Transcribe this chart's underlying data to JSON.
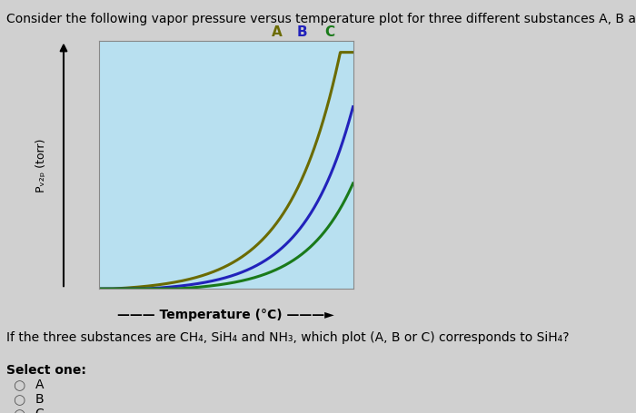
{
  "title": "Consider the following vapor pressure versus temperature plot for three different substances A, B and C.",
  "question": "If the three substances are CH₄, SiH₄ and NH₃, which plot (A, B or C) corresponds to SiH₄?",
  "select_one": "Select one:",
  "options": [
    "A",
    "B",
    "C"
  ],
  "ylabel": "Pᵥ₂ₚ (torr)",
  "xlabel": "Temperature (°C)",
  "plot_bg": "#b8e0f0",
  "curve_A_color": "#6b6b00",
  "curve_B_color": "#2222bb",
  "curve_C_color": "#1a7a1a",
  "label_A_color": "#6b6b00",
  "label_B_color": "#2222bb",
  "label_C_color": "#1a7a1a",
  "fig_bg": "#d0d0d0",
  "title_fontsize": 10,
  "question_fontsize": 10
}
